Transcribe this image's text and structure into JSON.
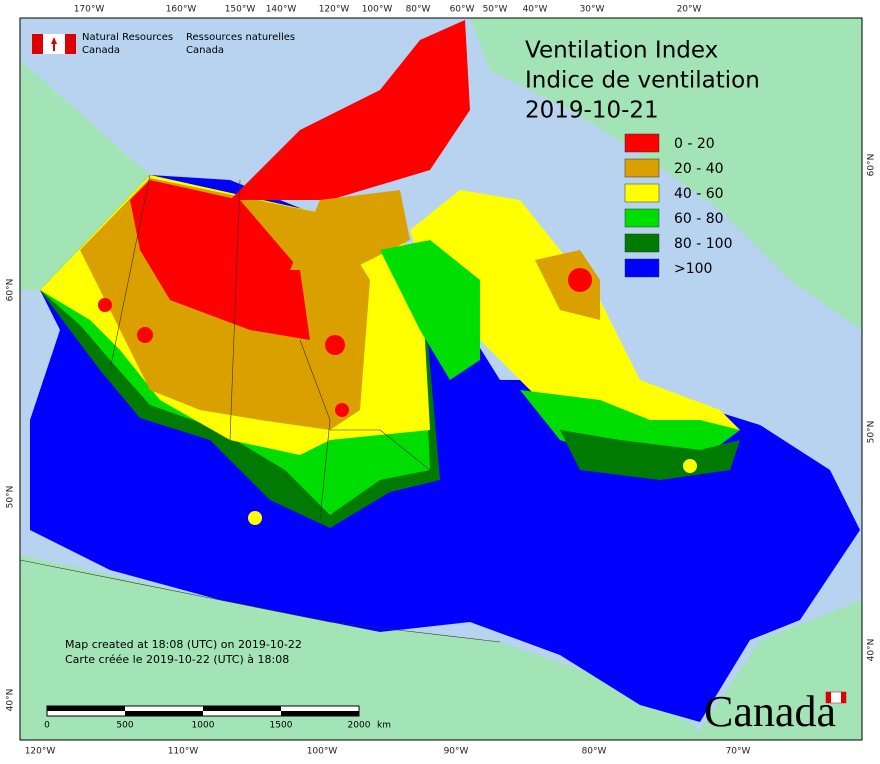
{
  "header": {
    "org_en_1": "Natural Resources",
    "org_en_2": "Canada",
    "org_fr_1": "Ressources naturelles",
    "org_fr_2": "Canada"
  },
  "title": {
    "line1": "Ventilation Index",
    "line2": "Indice de ventilation",
    "date": "2019-10-21"
  },
  "legend": [
    {
      "label": "0 - 20",
      "color": "#ff0000"
    },
    {
      "label": "20 - 40",
      "color": "#daa000"
    },
    {
      "label": "40 - 60",
      "color": "#ffff00"
    },
    {
      "label": "60 - 80",
      "color": "#00dd00"
    },
    {
      "label": "80 - 100",
      "color": "#007a00"
    },
    {
      "label": ">100",
      "color": "#0000ff"
    }
  ],
  "graticule": {
    "top": [
      "170°W",
      "160°W",
      "150°W",
      "140°W",
      "120°W",
      "100°W",
      "80°W",
      "60°W",
      "50°W",
      "40°W",
      "30°W",
      "20°W"
    ],
    "bottom": [
      "120°W",
      "110°W",
      "100°W",
      "90°W",
      "80°W",
      "70°W"
    ],
    "left": [
      "60°N",
      "50°N",
      "40°N"
    ],
    "right": [
      "60°N",
      "50°N",
      "40°N"
    ]
  },
  "scale": {
    "labels": [
      "0",
      "500",
      "1000",
      "1500",
      "2000"
    ],
    "unit": "km"
  },
  "credit": {
    "line1": "Map created at 18:08 (UTC) on 2019-10-22",
    "line2": "Carte créée le 2019-10-22 (UTC) à 18:08"
  },
  "wordmark": "Canada"
}
